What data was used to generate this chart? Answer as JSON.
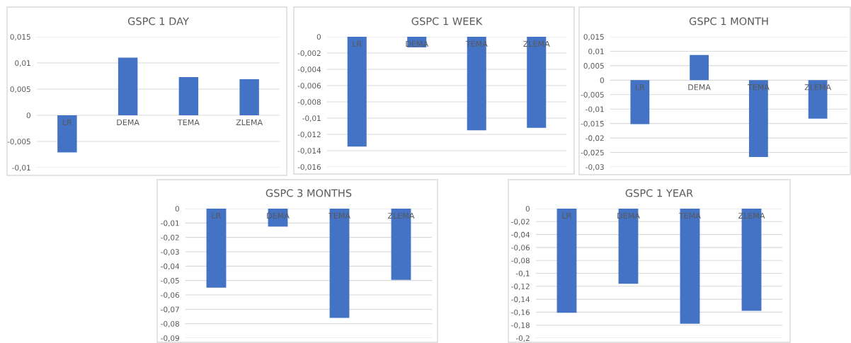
{
  "chart_data": [
    {
      "type": "bar",
      "title": "GSPC 1 DAY",
      "categories": [
        "LR",
        "DEMA",
        "TEMA",
        "ZLEMA"
      ],
      "values": [
        -0.0071,
        0.011,
        0.0073,
        0.0069
      ],
      "color": "#4472c4",
      "ylim": [
        -0.01,
        0.015
      ],
      "yticks": [
        {
          "value": -0.01,
          "label": "-0,01"
        },
        {
          "value": -0.005,
          "label": "-0,005"
        },
        0,
        {
          "value": 0.005,
          "label": "0,005"
        },
        {
          "value": 0.01,
          "label": "0,01"
        },
        {
          "value": 0.015,
          "label": "0,015"
        }
      ],
      "grid": "y"
    },
    {
      "type": "bar",
      "title": "GSPC 1 WEEK",
      "categories": [
        "LR",
        "DEMA",
        "TEMA",
        "ZLEMA"
      ],
      "values": [
        -0.0135,
        -0.0013,
        -0.0115,
        -0.0112
      ],
      "color": "#4472c4",
      "ylim": [
        -0.016,
        0
      ],
      "yticks": [
        {
          "value": -0.016,
          "label": "-0,016"
        },
        {
          "value": -0.014,
          "label": "-0,014"
        },
        {
          "value": -0.012,
          "label": "-0,012"
        },
        {
          "value": -0.01,
          "label": "-0,01"
        },
        {
          "value": -0.008,
          "label": "-0,008"
        },
        {
          "value": -0.006,
          "label": "-0,006"
        },
        {
          "value": -0.004,
          "label": "-0,004"
        },
        {
          "value": -0.002,
          "label": "-0,002"
        },
        0
      ],
      "grid": "y"
    },
    {
      "type": "bar",
      "title": "GSPC 1 MONTH",
      "categories": [
        "LR",
        "DEMA",
        "TEMA",
        "ZLEMA"
      ],
      "values": [
        -0.0152,
        0.0087,
        -0.0266,
        -0.0133
      ],
      "color": "#4472c4",
      "ylim": [
        -0.03,
        0.015
      ],
      "yticks": [
        {
          "value": -0.03,
          "label": "-0,03"
        },
        {
          "value": -0.025,
          "label": "-0,025"
        },
        {
          "value": -0.02,
          "label": "-0,02"
        },
        {
          "value": -0.015,
          "label": "-0,015"
        },
        {
          "value": -0.01,
          "label": "-0,01"
        },
        {
          "value": -0.005,
          "label": "-0,005"
        },
        0,
        {
          "value": 0.005,
          "label": "0,005"
        },
        {
          "value": 0.01,
          "label": "0,01"
        },
        {
          "value": 0.015,
          "label": "0,015"
        }
      ],
      "grid": "y"
    },
    {
      "type": "bar",
      "title": "GSPC 3 MONTHS",
      "categories": [
        "LR",
        "DEMA",
        "TEMA",
        "ZLEMA"
      ],
      "values": [
        -0.055,
        -0.0125,
        -0.076,
        -0.0495
      ],
      "color": "#4472c4",
      "ylim": [
        -0.09,
        0
      ],
      "yticks": [
        {
          "value": -0.09,
          "label": "-0,09"
        },
        {
          "value": -0.08,
          "label": "-0,08"
        },
        {
          "value": -0.07,
          "label": "-0,07"
        },
        {
          "value": -0.06,
          "label": "-0,06"
        },
        {
          "value": -0.05,
          "label": "-0,05"
        },
        {
          "value": -0.04,
          "label": "-0,04"
        },
        {
          "value": -0.03,
          "label": "-0,03"
        },
        {
          "value": -0.02,
          "label": "-0,02"
        },
        {
          "value": -0.01,
          "label": "-0,01"
        },
        0
      ],
      "grid": "y"
    },
    {
      "type": "bar",
      "title": "GSPC 1 YEAR",
      "categories": [
        "LR",
        "DEMA",
        "TEMA",
        "ZLEMA"
      ],
      "values": [
        -0.161,
        -0.116,
        -0.178,
        -0.158
      ],
      "color": "#4472c4",
      "ylim": [
        -0.2,
        0
      ],
      "yticks": [
        {
          "value": -0.2,
          "label": "-0,2"
        },
        {
          "value": -0.18,
          "label": "-0,18"
        },
        {
          "value": -0.16,
          "label": "-0,16"
        },
        {
          "value": -0.14,
          "label": "-0,14"
        },
        {
          "value": -0.12,
          "label": "-0,12"
        },
        {
          "value": -0.1,
          "label": "-0,1"
        },
        {
          "value": -0.08,
          "label": "-0,08"
        },
        {
          "value": -0.06,
          "label": "-0,06"
        },
        {
          "value": -0.04,
          "label": "-0,04"
        },
        {
          "value": -0.02,
          "label": "-0,02"
        },
        0
      ],
      "grid": "y"
    }
  ]
}
